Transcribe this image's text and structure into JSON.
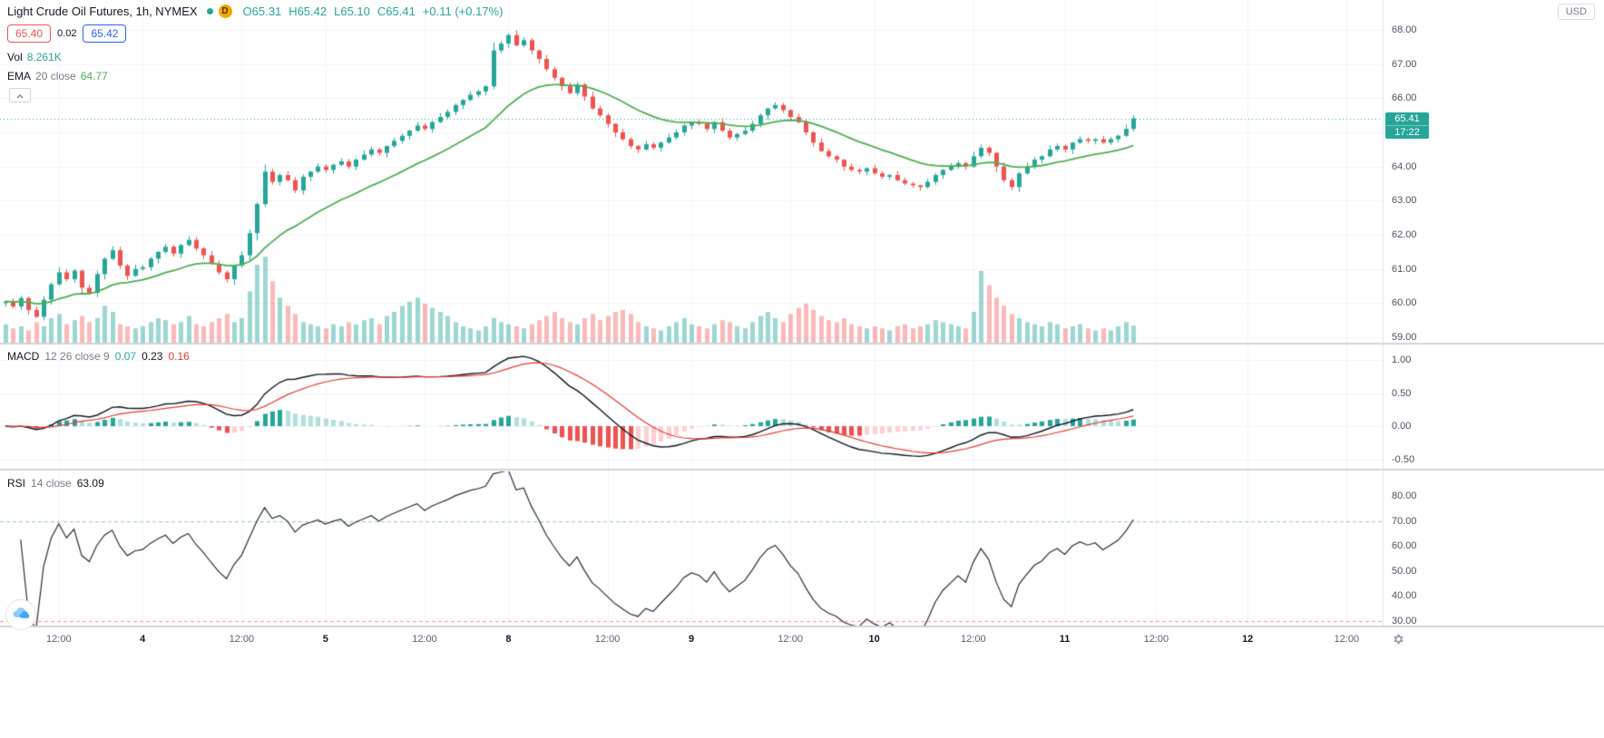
{
  "header": {
    "title": "Light Crude Oil Futures, 1h, NYMEX",
    "delayed_badge": "D",
    "ohlc": {
      "open": "O65.31",
      "high": "H65.42",
      "low": "L65.10",
      "close": "C65.41",
      "change": "+0.11 (+0.17%)"
    },
    "bid": "65.40",
    "spread": "0.02",
    "ask": "65.42",
    "vol_label": "Vol",
    "vol_value": "8.261K"
  },
  "ema_legend": {
    "title": "EMA",
    "params": "20 close",
    "value": "64.77"
  },
  "macd_legend": {
    "title": "MACD",
    "params": "12 26 close 9",
    "hist_value": "0.07",
    "macd_value": "0.23",
    "signal_value": "0.16"
  },
  "rsi_legend": {
    "title": "RSI",
    "params": "14 close",
    "value": "63.09"
  },
  "axis": {
    "currency": "USD",
    "last_price_label": "65.41",
    "countdown": "17:22",
    "main_price_ticks": [
      "68.00",
      "67.00",
      "66.00",
      "65.00",
      "64.00",
      "63.00",
      "62.00",
      "61.00",
      "60.00",
      "59.00"
    ],
    "macd_ticks": [
      "1.00",
      "0.50",
      "0.00",
      "-0.50"
    ],
    "rsi_ticks": [
      "80.00",
      "70.00",
      "60.00",
      "50.00",
      "40.00",
      "30.00"
    ],
    "time_ticks": [
      {
        "label": "12:00",
        "bar": 7
      },
      {
        "label": "4",
        "bar": 18,
        "day": true
      },
      {
        "label": "12:00",
        "bar": 31
      },
      {
        "label": "5",
        "bar": 42,
        "day": true
      },
      {
        "label": "12:00",
        "bar": 55
      },
      {
        "label": "8",
        "bar": 66,
        "day": true
      },
      {
        "label": "12:00",
        "bar": 79
      },
      {
        "label": "9",
        "bar": 90,
        "day": true
      },
      {
        "label": "12:00",
        "bar": 103
      },
      {
        "label": "10",
        "bar": 114,
        "day": true
      },
      {
        "label": "12:00",
        "bar": 127
      },
      {
        "label": "11",
        "bar": 139,
        "day": true
      },
      {
        "label": "12:00",
        "bar": 151
      },
      {
        "label": "12",
        "bar": 163,
        "day": true
      },
      {
        "label": "12:00",
        "bar": 176
      }
    ]
  },
  "colors": {
    "up": "#26a69a",
    "down": "#ef5350",
    "vol_up": "rgba(38,166,154,0.45)",
    "vol_down": "rgba(239,83,80,0.40)",
    "ema": "#4caf50",
    "grid": "#f0f3fa",
    "separator": "#d1d4dc",
    "macd_line": "#131722",
    "signal_line": "#e53935",
    "hist_pos_strong": "#26a69a",
    "hist_pos_light": "#b2dfdb",
    "hist_neg_strong": "#ef5350",
    "hist_neg_light": "#ffcdd2",
    "rsi_line": "#2a2e39",
    "rsi_upper": "#4caf50",
    "rsi_lower": "#ef5350",
    "axis_text": "#4c525e"
  },
  "chart_data": {
    "type": "candlestick",
    "title": "Light Crude Oil Futures",
    "interval": "1h",
    "exchange": "NYMEX",
    "price_axis_range": [
      59,
      68
    ],
    "last_price": 65.41,
    "ema_length": 20,
    "macd": {
      "fast": 12,
      "slow": 26,
      "signal": 9,
      "ticks": [
        1.0,
        0.5,
        0.0,
        -0.5
      ]
    },
    "rsi": {
      "length": 14,
      "bands": [
        70,
        30
      ],
      "ticks": [
        80,
        70,
        60,
        50,
        40,
        30
      ]
    },
    "first_open": 60.0,
    "closes": [
      60.05,
      59.9,
      60.15,
      59.8,
      59.6,
      60.1,
      60.55,
      60.9,
      60.7,
      60.95,
      60.45,
      60.3,
      60.85,
      61.3,
      61.55,
      61.1,
      60.8,
      61.0,
      61.05,
      61.3,
      61.5,
      61.65,
      61.45,
      61.7,
      61.85,
      61.6,
      61.4,
      61.15,
      60.9,
      60.7,
      61.1,
      61.4,
      62.05,
      62.9,
      63.85,
      63.55,
      63.75,
      63.6,
      63.3,
      63.7,
      63.85,
      64.0,
      63.9,
      64.05,
      64.15,
      64.0,
      64.2,
      64.35,
      64.5,
      64.4,
      64.6,
      64.75,
      64.9,
      65.05,
      65.2,
      65.1,
      65.3,
      65.45,
      65.6,
      65.8,
      65.95,
      66.1,
      66.2,
      66.35,
      67.4,
      67.6,
      67.85,
      67.55,
      67.7,
      67.4,
      67.15,
      66.85,
      66.6,
      66.35,
      66.15,
      66.4,
      66.05,
      65.7,
      65.5,
      65.25,
      65.0,
      64.8,
      64.6,
      64.5,
      64.65,
      64.55,
      64.7,
      64.85,
      65.0,
      65.2,
      65.3,
      65.25,
      65.1,
      65.3,
      65.05,
      64.85,
      64.95,
      65.05,
      65.25,
      65.5,
      65.7,
      65.8,
      65.65,
      65.45,
      65.3,
      65.0,
      64.7,
      64.45,
      64.3,
      64.2,
      64.0,
      63.9,
      63.85,
      63.95,
      63.8,
      63.7,
      63.75,
      63.6,
      63.5,
      63.45,
      63.4,
      63.55,
      63.75,
      63.9,
      64.0,
      64.1,
      64.0,
      64.3,
      64.55,
      64.4,
      64.0,
      63.6,
      63.4,
      63.8,
      64.0,
      64.2,
      64.3,
      64.5,
      64.6,
      64.5,
      64.7,
      64.8,
      64.75,
      64.8,
      64.7,
      64.8,
      64.9,
      65.1,
      65.41
    ],
    "volumes_k": [
      9,
      7,
      8,
      6,
      10,
      8,
      12,
      14,
      9,
      11,
      13,
      10,
      12,
      18,
      15,
      9,
      8,
      7,
      8,
      10,
      12,
      11,
      9,
      10,
      13,
      9,
      8,
      10,
      12,
      14,
      10,
      12,
      25,
      38,
      42,
      30,
      22,
      18,
      14,
      10,
      9,
      8,
      7,
      9,
      8,
      10,
      9,
      11,
      12,
      9,
      13,
      15,
      18,
      20,
      22,
      19,
      17,
      15,
      13,
      10,
      8,
      7,
      6,
      8,
      12,
      10,
      9,
      8,
      7,
      9,
      11,
      13,
      15,
      12,
      10,
      9,
      12,
      14,
      11,
      13,
      15,
      16,
      14,
      10,
      8,
      7,
      6,
      8,
      10,
      12,
      9,
      8,
      7,
      9,
      11,
      10,
      8,
      7,
      10,
      13,
      15,
      12,
      10,
      14,
      17,
      19,
      16,
      13,
      11,
      10,
      12,
      9,
      8,
      7,
      8,
      7,
      6,
      8,
      9,
      7,
      8,
      9,
      11,
      10,
      9,
      8,
      7,
      15,
      35,
      28,
      22,
      18,
      14,
      12,
      10,
      9,
      8,
      10,
      9,
      7,
      8,
      9,
      7,
      6,
      7,
      6,
      8,
      10,
      8.3
    ]
  }
}
